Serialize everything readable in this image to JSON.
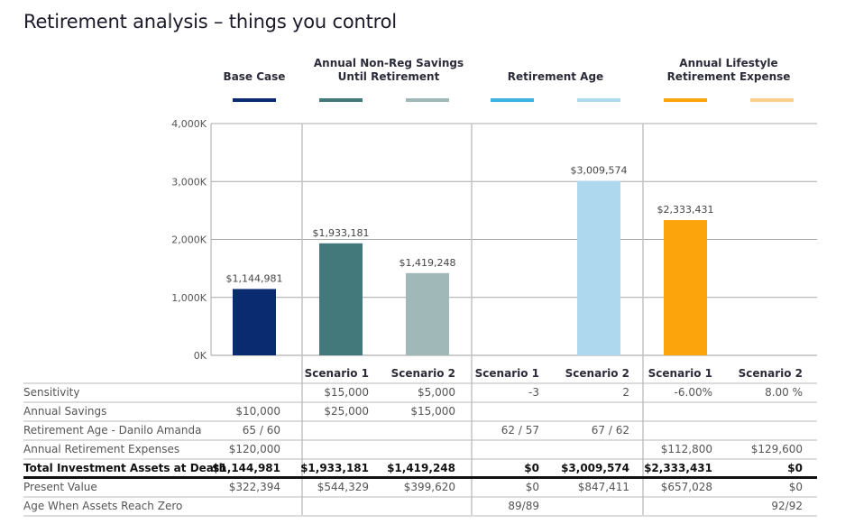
{
  "title": "Retirement analysis – things you control",
  "legend": [
    {
      "label": "Base Case",
      "swatches": [
        "#0b2b70"
      ]
    },
    {
      "label": "Annual Non-Reg Savings\nUntil Retirement",
      "swatches": [
        "#43797a",
        "#a1b8b8"
      ]
    },
    {
      "label": "Retirement Age",
      "swatches": [
        "#3ab3e0",
        "#aed8ee"
      ]
    },
    {
      "label": "Annual Lifestyle\nRetirement Expense",
      "swatches": [
        "#fca40b",
        "#fbcf8a"
      ]
    }
  ],
  "chart_data": {
    "type": "bar",
    "title": "Retirement analysis – things you control",
    "xlabel": "",
    "ylabel": "",
    "ylim": [
      0,
      4000000
    ],
    "yticks": [
      0,
      1000000,
      2000000,
      3000000,
      4000000
    ],
    "ytick_labels": [
      "0K",
      "1,000K",
      "2,000K",
      "3,000K",
      "4,000K"
    ],
    "grid": true,
    "legend_position": "top",
    "categories": [
      "Base Case",
      "Scenario 1",
      "Scenario 2",
      "Scenario 1",
      "Scenario 2",
      "Scenario 1",
      "Scenario 2"
    ],
    "groups": [
      "Base Case",
      "Annual Non-Reg Savings Until Retirement",
      "Annual Non-Reg Savings Until Retirement",
      "Retirement Age",
      "Retirement Age",
      "Annual Lifestyle Retirement Expense",
      "Annual Lifestyle Retirement Expense"
    ],
    "values": [
      1144981,
      1933181,
      1419248,
      0,
      3009574,
      2333431,
      0
    ],
    "data_labels": [
      "$1,144,981",
      "$1,933,181",
      "$1,419,248",
      "",
      "$3,009,574",
      "$2,333,431",
      ""
    ],
    "colors": [
      "#0b2b70",
      "#43797a",
      "#a1b8b8",
      "#3ab3e0",
      "#aed8ee",
      "#fca40b",
      "#fbcf8a"
    ]
  },
  "table": {
    "headers": [
      "",
      "",
      "Scenario 1",
      "Scenario 2",
      "Scenario 1",
      "Scenario 2",
      "Scenario 1",
      "Scenario 2"
    ],
    "rows": [
      {
        "label": "Sensitivity",
        "bold": false,
        "cells": [
          "",
          "$15,000",
          "$5,000",
          "-3",
          "2",
          "-6.00%",
          "8.00 %"
        ]
      },
      {
        "label": "Annual Savings",
        "bold": false,
        "cells": [
          "$10,000",
          "$25,000",
          "$15,000",
          "",
          "",
          "",
          ""
        ]
      },
      {
        "label": "Retirement Age - Danilo Amanda",
        "bold": false,
        "cells": [
          "65 / 60",
          "",
          "",
          "62 / 57",
          "67 / 62",
          "",
          ""
        ]
      },
      {
        "label": "Annual Retirement Expenses",
        "bold": false,
        "cells": [
          "$120,000",
          "",
          "",
          "",
          "",
          "$112,800",
          "$129,600"
        ]
      },
      {
        "label": "Total Investment Assets at Death",
        "bold": true,
        "cells": [
          "$1,144,981",
          "$1,933,181",
          "$1,419,248",
          "$0",
          "$3,009,574",
          "$2,333,431",
          "$0"
        ]
      },
      {
        "label": "Present Value",
        "bold": false,
        "cells": [
          "$322,394",
          "$544,329",
          "$399,620",
          "$0",
          "$847,411",
          "$657,028",
          "$0"
        ]
      },
      {
        "label": "Age When Assets Reach Zero",
        "bold": false,
        "cells": [
          "",
          "",
          "",
          "89/89",
          "",
          "",
          "92/92"
        ]
      }
    ]
  }
}
